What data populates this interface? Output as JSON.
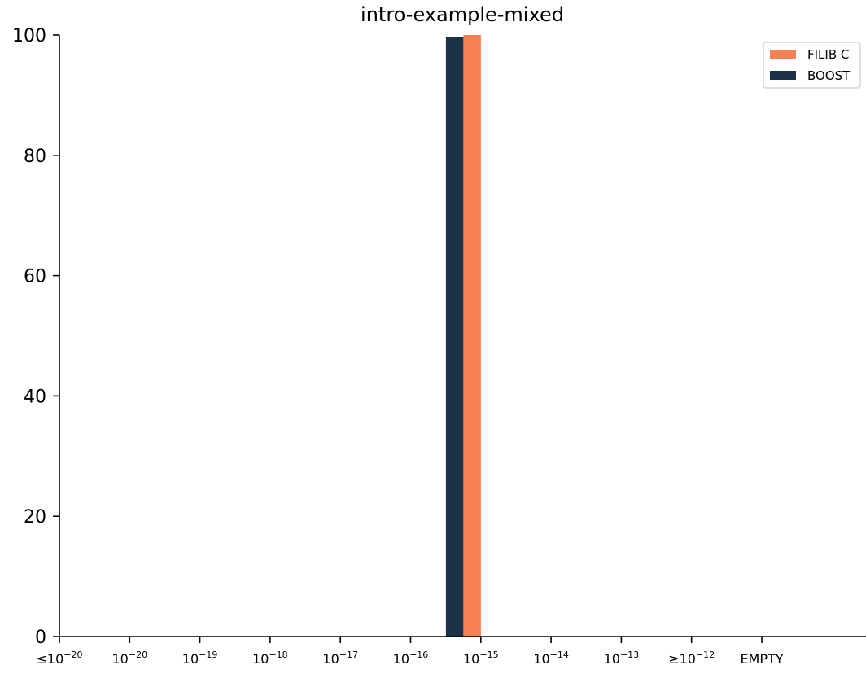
{
  "chart_data": {
    "type": "bar",
    "title": "intro-example-mixed",
    "xlabel": "",
    "ylabel": "",
    "ylim": [
      0,
      100
    ],
    "yticks": [
      0,
      20,
      40,
      60,
      80,
      100
    ],
    "grid": false,
    "legend_position": "top-right",
    "categories": [
      {
        "prefix": "≤",
        "base": "10",
        "exp": "−20"
      },
      {
        "prefix": "",
        "base": "10",
        "exp": "−20"
      },
      {
        "prefix": "",
        "base": "10",
        "exp": "−19"
      },
      {
        "prefix": "",
        "base": "10",
        "exp": "−18"
      },
      {
        "prefix": "",
        "base": "10",
        "exp": "−17"
      },
      {
        "prefix": "",
        "base": "10",
        "exp": "−16"
      },
      {
        "prefix": "",
        "base": "10",
        "exp": "−15"
      },
      {
        "prefix": "",
        "base": "10",
        "exp": "−14"
      },
      {
        "prefix": "",
        "base": "10",
        "exp": "−13"
      },
      {
        "prefix": "≥",
        "base": "10",
        "exp": "−12"
      },
      {
        "prefix": "",
        "base": "EMPTY",
        "exp": ""
      }
    ],
    "series": [
      {
        "name": "BOOST",
        "color": "#1d3248",
        "values": [
          0,
          0,
          0,
          0,
          0,
          99.6,
          0.3,
          0,
          0,
          0,
          0
        ]
      },
      {
        "name": "FILIB C",
        "color": "#f78154",
        "values": [
          0,
          0,
          0,
          0,
          0,
          100,
          0,
          0,
          0,
          0,
          0
        ]
      }
    ],
    "legend_order": [
      "FILIB C",
      "BOOST"
    ]
  }
}
